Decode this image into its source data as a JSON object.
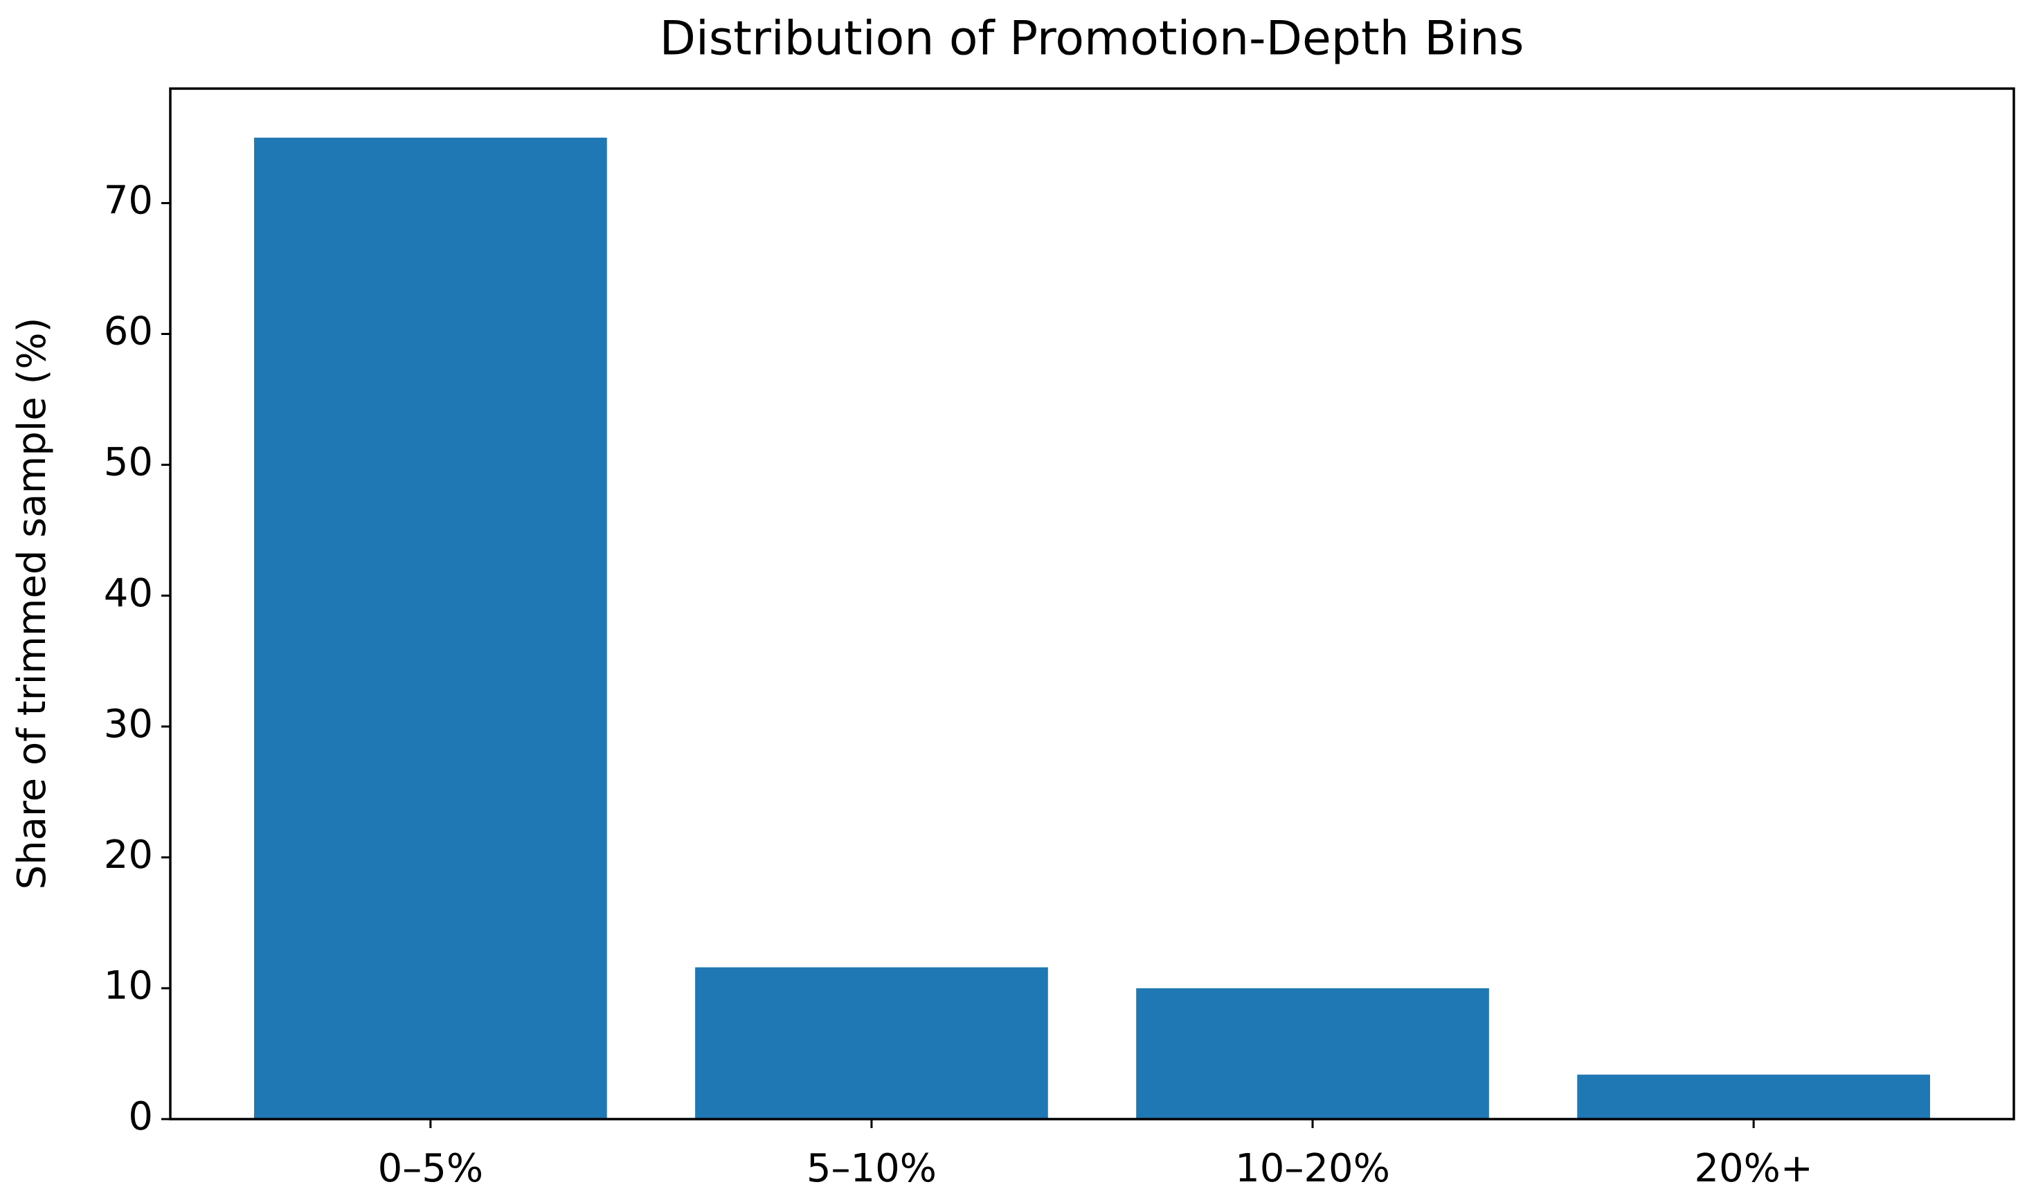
{
  "chart_data": {
    "type": "bar",
    "title": "Distribution of Promotion-Depth Bins",
    "y_label": "Share of trimmed sample (%)",
    "categories": [
      "0–5%",
      "5–10%",
      "10–20%",
      "20%+"
    ],
    "values": [
      75,
      11.6,
      10,
      3.4
    ],
    "color": "#1f77b4",
    "ylim": [
      0,
      78.75
    ],
    "yticks": [
      0,
      10,
      20,
      30,
      40,
      50,
      60,
      70
    ],
    "grid": false
  }
}
